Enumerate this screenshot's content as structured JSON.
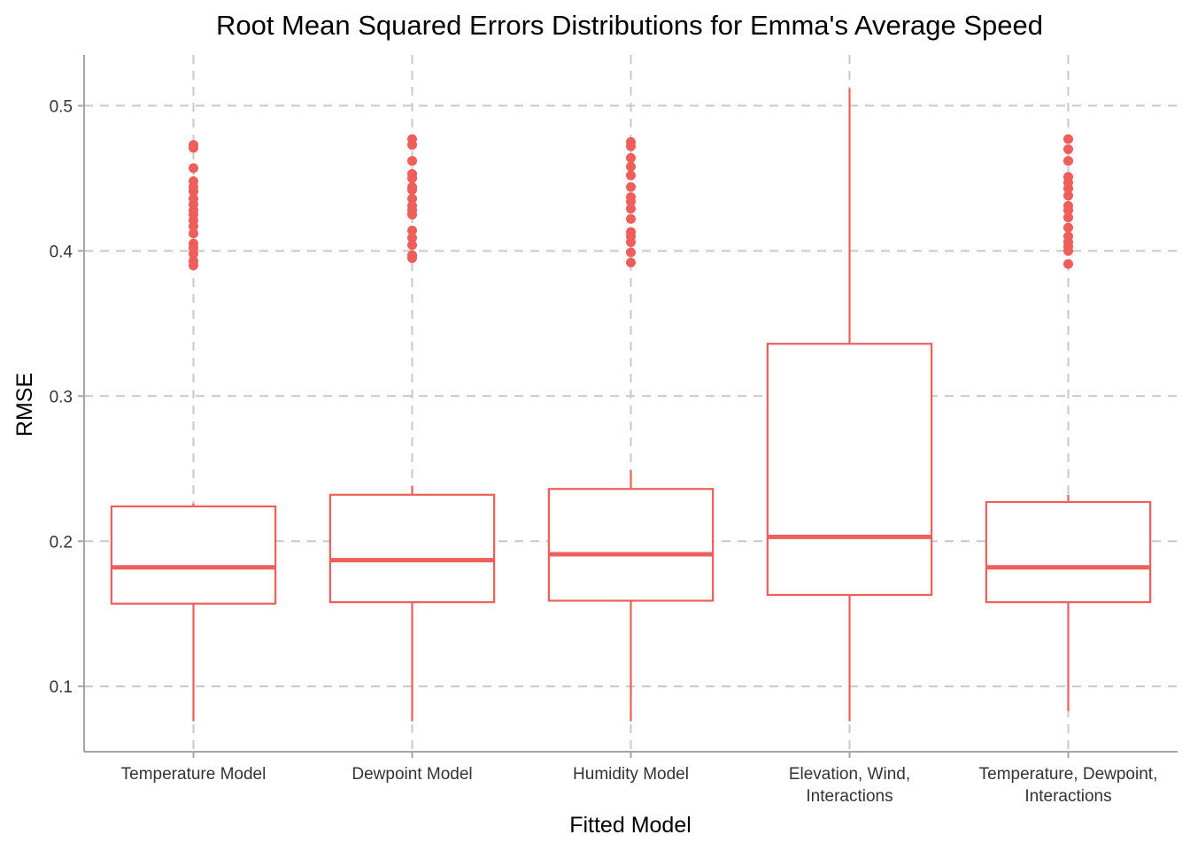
{
  "chart_data": {
    "type": "box",
    "title": "Root Mean Squared Errors Distributions for Emma's Average Speed",
    "xlabel": "Fitted Model",
    "ylabel": "RMSE",
    "ylim": [
      0.055,
      0.535
    ],
    "yticks": [
      0.1,
      0.2,
      0.3,
      0.4,
      0.5
    ],
    "ytick_labels": [
      "0.1",
      "0.2",
      "0.3",
      "0.4",
      "0.5"
    ],
    "grid": true,
    "color": "#ee5f5b",
    "categories": [
      [
        "Temperature Model"
      ],
      [
        "Dewpoint Model"
      ],
      [
        "Humidity Model"
      ],
      [
        "Elevation, Wind,",
        "Interactions"
      ],
      [
        "Temperature, Dewpoint,",
        "Interactions"
      ]
    ],
    "boxes": [
      {
        "whisker_low": 0.076,
        "q1": 0.157,
        "median": 0.182,
        "q3": 0.224,
        "whisker_high": 0.226,
        "outliers": [
          0.39,
          0.393,
          0.398,
          0.402,
          0.405,
          0.412,
          0.417,
          0.421,
          0.425,
          0.428,
          0.432,
          0.436,
          0.441,
          0.444,
          0.448,
          0.457,
          0.471,
          0.473
        ]
      },
      {
        "whisker_low": 0.076,
        "q1": 0.158,
        "median": 0.187,
        "q3": 0.232,
        "whisker_high": 0.238,
        "outliers": [
          0.395,
          0.397,
          0.404,
          0.409,
          0.414,
          0.425,
          0.428,
          0.431,
          0.436,
          0.442,
          0.444,
          0.45,
          0.453,
          0.462,
          0.473,
          0.477
        ]
      },
      {
        "whisker_low": 0.076,
        "q1": 0.159,
        "median": 0.191,
        "q3": 0.236,
        "whisker_high": 0.249,
        "outliers": [
          0.392,
          0.399,
          0.406,
          0.41,
          0.413,
          0.422,
          0.429,
          0.434,
          0.437,
          0.444,
          0.452,
          0.458,
          0.464,
          0.472,
          0.475
        ]
      },
      {
        "whisker_low": 0.076,
        "q1": 0.163,
        "median": 0.203,
        "q3": 0.336,
        "whisker_high": 0.512,
        "outliers": []
      },
      {
        "whisker_low": 0.083,
        "q1": 0.158,
        "median": 0.182,
        "q3": 0.227,
        "whisker_high": 0.232,
        "outliers": [
          0.391,
          0.4,
          0.403,
          0.406,
          0.41,
          0.416,
          0.423,
          0.428,
          0.431,
          0.438,
          0.443,
          0.447,
          0.451,
          0.462,
          0.47,
          0.477
        ]
      }
    ]
  }
}
